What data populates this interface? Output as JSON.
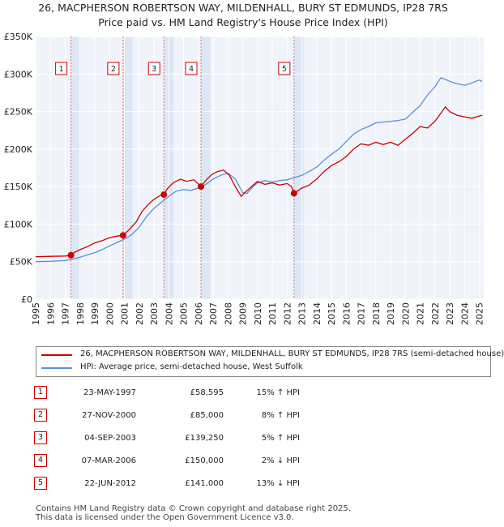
{
  "chart_data": {
    "type": "line",
    "title": "26, MACPHERSON ROBERTSON WAY, MILDENHALL, BURY ST EDMUNDS, IP28 7RS",
    "subtitle": "Price paid vs. HM Land Registry's House Price Index (HPI)",
    "xlabel": "",
    "ylabel": "",
    "xlim": [
      1995,
      2025.3
    ],
    "ylim": [
      0,
      350000
    ],
    "y_ticks": [
      0,
      50000,
      100000,
      150000,
      200000,
      250000,
      300000,
      350000
    ],
    "y_tick_labels": [
      "£0",
      "£50K",
      "£100K",
      "£150K",
      "£200K",
      "£250K",
      "£300K",
      "£350K"
    ],
    "x_ticks": [
      1995,
      1996,
      1997,
      1998,
      1999,
      2000,
      2001,
      2002,
      2003,
      2004,
      2005,
      2006,
      2007,
      2008,
      2009,
      2010,
      2011,
      2012,
      2013,
      2014,
      2015,
      2016,
      2017,
      2018,
      2019,
      2020,
      2021,
      2022,
      2023,
      2024,
      2025
    ],
    "x_tick_labels": [
      "1995",
      "1996",
      "1997",
      "1998",
      "1999",
      "2000",
      "2001",
      "2002",
      "2003",
      "2004",
      "2005",
      "2006",
      "2007",
      "2008",
      "2009",
      "2010",
      "2011",
      "2012",
      "2013",
      "2014",
      "2015",
      "2016",
      "2017",
      "2018",
      "2019",
      "2020",
      "2021",
      "2022",
      "2023",
      "2024",
      "2025"
    ],
    "grid": true,
    "series": [
      {
        "name": "26, MACPHERSON ROBERTSON WAY, MILDENHALL, BURY ST EDMUNDS, IP28 7RS (semi-detached house)",
        "color": "#cc0000",
        "x": [
          1995.0,
          1996.0,
          1997.0,
          1997.39,
          1997.6,
          1998.0,
          1998.5,
          1999.0,
          1999.5,
          2000.0,
          2000.5,
          2000.9,
          2001.3,
          2001.8,
          2002.2,
          2002.6,
          2003.0,
          2003.4,
          2003.67,
          2003.9,
          2004.3,
          2004.8,
          2005.2,
          2005.7,
          2006.18,
          2006.5,
          2006.9,
          2007.3,
          2007.7,
          2008.1,
          2008.5,
          2008.9,
          2009.2,
          2009.6,
          2010.0,
          2010.5,
          2011.0,
          2011.5,
          2012.0,
          2012.3,
          2012.47,
          2012.7,
          2013.0,
          2013.5,
          2014.0,
          2014.5,
          2015.0,
          2015.5,
          2016.0,
          2016.5,
          2017.0,
          2017.5,
          2018.0,
          2018.5,
          2019.0,
          2019.5,
          2020.0,
          2020.5,
          2021.0,
          2021.5,
          2022.0,
          2022.3,
          2022.7,
          2023.0,
          2023.5,
          2024.0,
          2024.5,
          2025.0,
          2025.2
        ],
        "y": [
          56500,
          57000,
          57500,
          58595,
          62000,
          66000,
          70000,
          75000,
          78000,
          82000,
          84000,
          85000,
          92000,
          103000,
          117000,
          126000,
          133000,
          138000,
          139250,
          147000,
          155000,
          160000,
          157000,
          159000,
          150000,
          158000,
          166000,
          170000,
          172000,
          165000,
          150000,
          137000,
          143000,
          150000,
          157000,
          153000,
          155000,
          152000,
          154000,
          150000,
          141000,
          144000,
          148000,
          152000,
          160000,
          170000,
          178000,
          183000,
          190000,
          200000,
          207000,
          205000,
          209000,
          206000,
          209000,
          205000,
          213000,
          221000,
          230000,
          228000,
          237000,
          245000,
          256000,
          250000,
          245000,
          243000,
          241000,
          244000,
          245000
        ]
      },
      {
        "name": "HPI: Average price, semi-detached house, West Suffolk",
        "color": "#5b8fd6",
        "x": [
          1995.0,
          1996.0,
          1997.0,
          1997.5,
          1998.0,
          1998.5,
          1999.0,
          1999.5,
          2000.0,
          2000.5,
          2001.0,
          2001.5,
          2002.0,
          2002.5,
          2003.0,
          2003.5,
          2004.0,
          2004.5,
          2005.0,
          2005.5,
          2006.0,
          2006.5,
          2007.0,
          2007.5,
          2008.0,
          2008.5,
          2009.0,
          2009.3,
          2009.7,
          2010.0,
          2010.5,
          2011.0,
          2011.5,
          2012.0,
          2012.5,
          2013.0,
          2013.5,
          2014.0,
          2014.5,
          2015.0,
          2015.5,
          2016.0,
          2016.5,
          2017.0,
          2017.5,
          2018.0,
          2018.5,
          2019.0,
          2019.5,
          2020.0,
          2020.5,
          2021.0,
          2021.5,
          2022.0,
          2022.4,
          2022.8,
          2023.0,
          2023.5,
          2024.0,
          2024.5,
          2025.0,
          2025.2
        ],
        "y": [
          50000,
          50500,
          51500,
          53500,
          56000,
          59000,
          62000,
          66000,
          71000,
          75500,
          80000,
          86000,
          96000,
          110000,
          121000,
          129000,
          137000,
          144000,
          146000,
          145000,
          148000,
          153000,
          160000,
          165000,
          168000,
          160000,
          142000,
          141000,
          150000,
          155000,
          158000,
          156000,
          158000,
          159000,
          162000,
          165000,
          170000,
          176000,
          185000,
          193000,
          200000,
          210000,
          220000,
          226000,
          230000,
          235000,
          236000,
          237000,
          238000,
          240000,
          249000,
          258000,
          272000,
          283000,
          295000,
          292000,
          290000,
          287000,
          285000,
          288000,
          292000,
          290000
        ]
      }
    ],
    "sales": [
      {
        "id": "1",
        "x": 1997.39,
        "y": 58595
      },
      {
        "id": "2",
        "x": 2000.91,
        "y": 85000
      },
      {
        "id": "3",
        "x": 2003.67,
        "y": 139250
      },
      {
        "id": "4",
        "x": 2006.18,
        "y": 150000
      },
      {
        "id": "5",
        "x": 2012.47,
        "y": 141000
      }
    ]
  },
  "header": {
    "title": "26, MACPHERSON ROBERTSON WAY, MILDENHALL, BURY ST EDMUNDS, IP28 7RS",
    "subtitle": "Price paid vs. HM Land Registry's House Price Index (HPI)"
  },
  "legend": {
    "items": [
      {
        "label": "26, MACPHERSON ROBERTSON WAY, MILDENHALL, BURY ST EDMUNDS, IP28 7RS (semi-detached house)",
        "color": "#cc0000"
      },
      {
        "label": "HPI: Average price, semi-detached house, West Suffolk",
        "color": "#5b8fd6"
      }
    ]
  },
  "transactions": [
    {
      "num": "1",
      "date": "23-MAY-1997",
      "price": "£58,595",
      "hpi": "15% ↑ HPI"
    },
    {
      "num": "2",
      "date": "27-NOV-2000",
      "price": "£85,000",
      "hpi": "8% ↑ HPI"
    },
    {
      "num": "3",
      "date": "04-SEP-2003",
      "price": "£139,250",
      "hpi": "5% ↑ HPI"
    },
    {
      "num": "4",
      "date": "07-MAR-2006",
      "price": "£150,000",
      "hpi": "2% ↓ HPI"
    },
    {
      "num": "5",
      "date": "22-JUN-2012",
      "price": "£141,000",
      "hpi": "13% ↓ HPI"
    }
  ],
  "footer": {
    "line1": "Contains HM Land Registry data © Crown copyright and database right 2025.",
    "line2": "This data is licensed under the Open Government Licence v3.0."
  }
}
